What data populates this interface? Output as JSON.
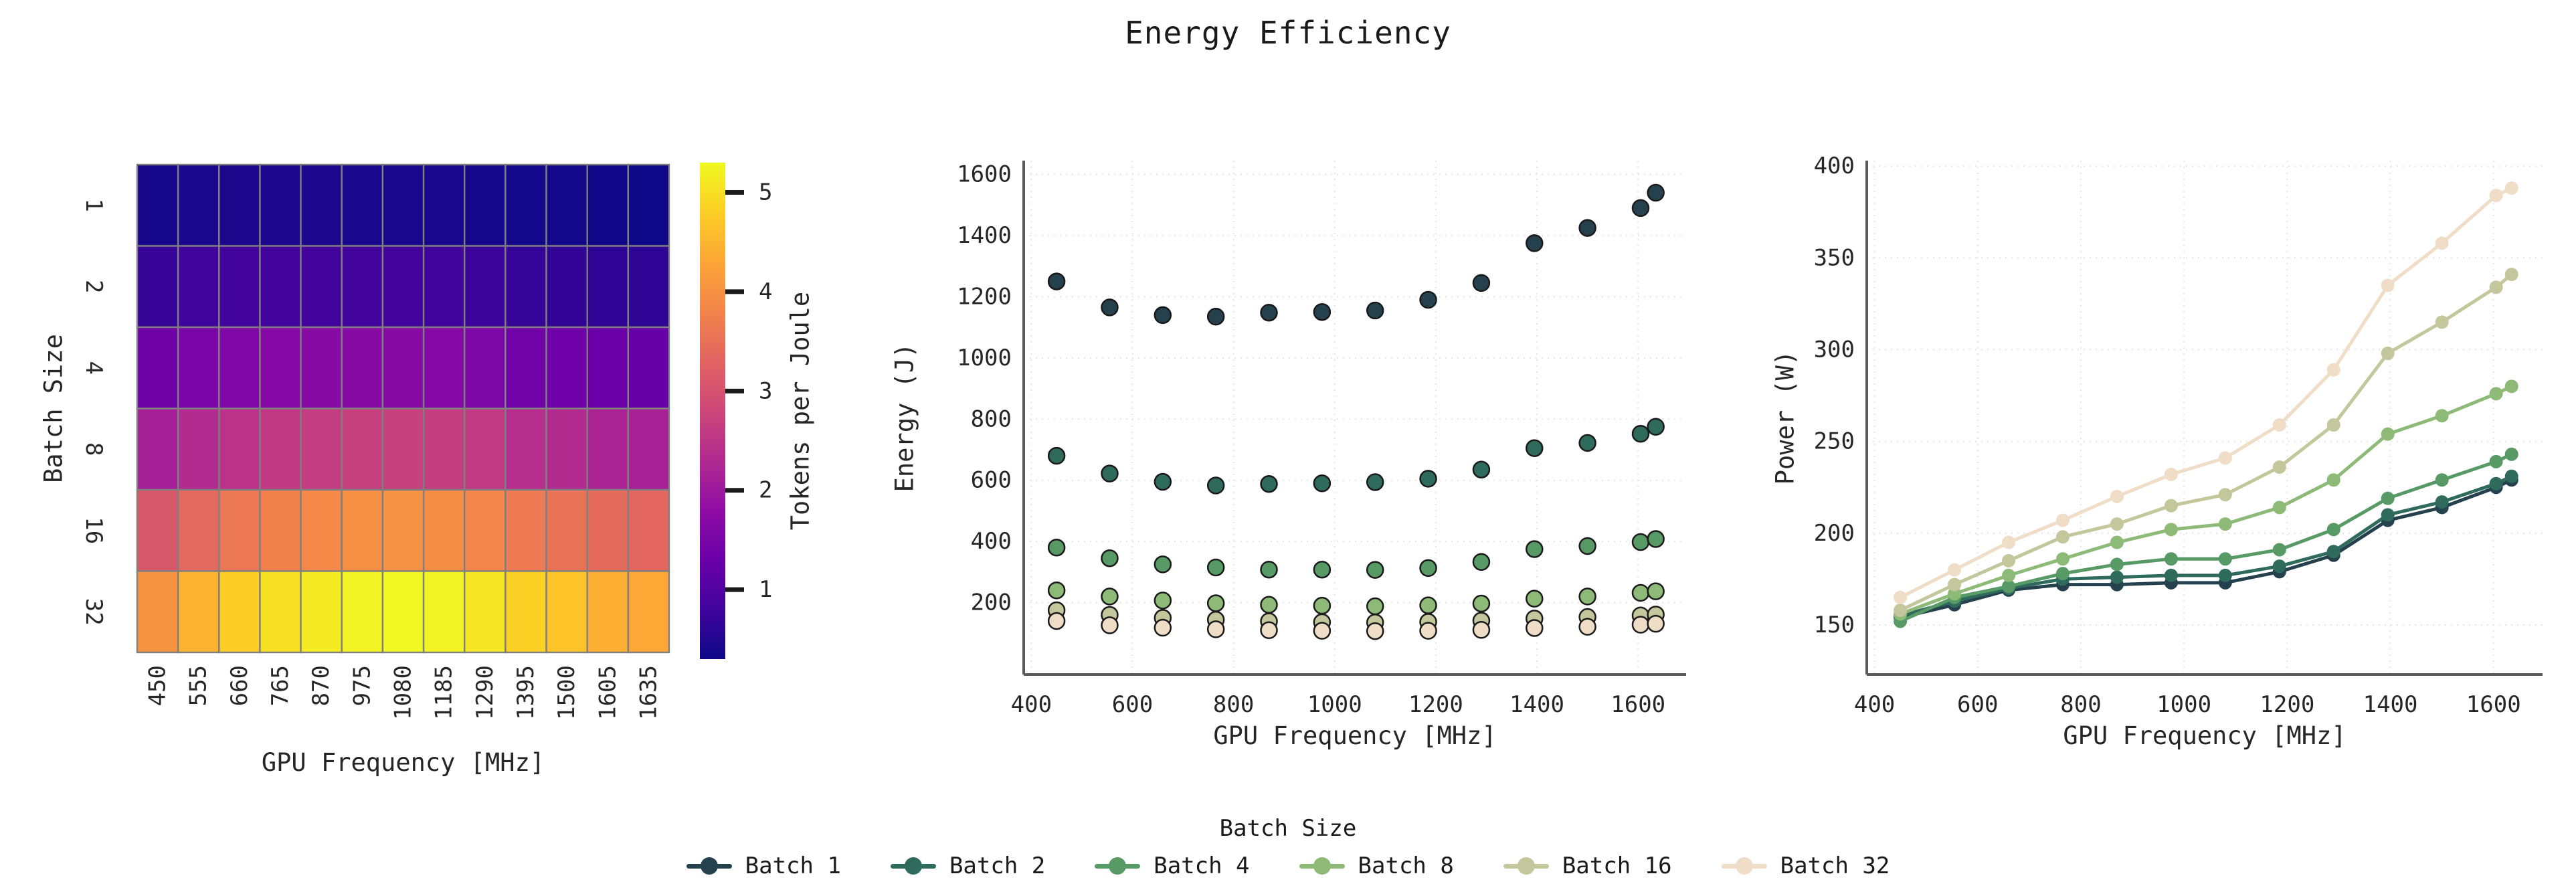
{
  "title": "Energy Efficiency",
  "colors": {
    "background": "#ffffff",
    "text": "#262626",
    "title_text": "#1a1a1a",
    "spine": "#5a5a5a",
    "grid": "#e4e4e4",
    "cell_border": "#7f7f7f",
    "marker_edge": "#1a1a1a",
    "series": {
      "batch_1": "#25414e",
      "batch_2": "#2f6b5c",
      "batch_4": "#579a66",
      "batch_8": "#8eba77",
      "batch_16": "#c4c69c",
      "batch_32": "#f0ddc8"
    },
    "plasma_stops": [
      "#0d0887",
      "#41049d",
      "#6a00a8",
      "#8f0da4",
      "#b12a90",
      "#cc4778",
      "#e16462",
      "#f2844b",
      "#fca636",
      "#fcce25",
      "#f0f921"
    ]
  },
  "legend": {
    "title": "Batch Size",
    "entries": [
      {
        "label": "Batch 1",
        "color": "#25414e"
      },
      {
        "label": "Batch 2",
        "color": "#2f6b5c"
      },
      {
        "label": "Batch 4",
        "color": "#579a66"
      },
      {
        "label": "Batch 8",
        "color": "#8eba77"
      },
      {
        "label": "Batch 16",
        "color": "#c4c69c"
      },
      {
        "label": "Batch 32",
        "color": "#f0ddc8"
      }
    ]
  },
  "chart_data": [
    {
      "type": "heatmap",
      "xlabel": "GPU Frequency [MHz]",
      "ylabel": "Batch Size",
      "x_ticks": [
        "450",
        "555",
        "660",
        "765",
        "870",
        "975",
        "1080",
        "1185",
        "1290",
        "1395",
        "1500",
        "1605",
        "1635"
      ],
      "y_ticks": [
        "1",
        "2",
        "4",
        "8",
        "16",
        "32"
      ],
      "vmin": 0.3,
      "vmax": 5.3,
      "values": [
        [
          0.4,
          0.43,
          0.44,
          0.44,
          0.44,
          0.43,
          0.43,
          0.42,
          0.4,
          0.36,
          0.35,
          0.34,
          0.32
        ],
        [
          0.71,
          0.77,
          0.81,
          0.82,
          0.82,
          0.81,
          0.81,
          0.79,
          0.76,
          0.68,
          0.66,
          0.64,
          0.62
        ],
        [
          1.37,
          1.51,
          1.6,
          1.65,
          1.69,
          1.69,
          1.69,
          1.66,
          1.56,
          1.39,
          1.35,
          1.31,
          1.27
        ],
        [
          2.13,
          2.32,
          2.46,
          2.58,
          2.64,
          2.68,
          2.71,
          2.67,
          2.59,
          2.39,
          2.32,
          2.2,
          2.15
        ],
        [
          3.09,
          3.38,
          3.6,
          3.75,
          3.88,
          3.97,
          4.0,
          3.94,
          3.83,
          3.65,
          3.53,
          3.42,
          3.35
        ],
        [
          4.04,
          4.48,
          4.79,
          5.0,
          5.14,
          5.23,
          5.28,
          5.23,
          5.09,
          4.83,
          4.67,
          4.41,
          4.31
        ]
      ],
      "colorbar": {
        "label": "Tokens per Joule",
        "ticks": [
          1,
          2,
          3,
          4,
          5
        ]
      }
    },
    {
      "type": "scatter",
      "xlabel": "GPU Frequency [MHz]",
      "ylabel": "Energy (J)",
      "x": [
        450,
        555,
        660,
        765,
        870,
        975,
        1080,
        1185,
        1290,
        1395,
        1500,
        1605,
        1635
      ],
      "xticks": [
        400,
        600,
        800,
        1000,
        1200,
        1400,
        1600
      ],
      "yticks": [
        200,
        400,
        600,
        800,
        1000,
        1200,
        1400,
        1600
      ],
      "xlim": [
        385,
        1695
      ],
      "ylim": [
        -35,
        1645
      ],
      "series": [
        {
          "name": "Batch 1",
          "values": [
            1250,
            1165,
            1140,
            1135,
            1148,
            1150,
            1155,
            1190,
            1245,
            1375,
            1425,
            1490,
            1540
          ]
        },
        {
          "name": "Batch 2",
          "values": [
            680,
            622,
            595,
            583,
            588,
            590,
            594,
            605,
            635,
            705,
            722,
            752,
            775
          ]
        },
        {
          "name": "Batch 4",
          "values": [
            380,
            345,
            325,
            315,
            308,
            308,
            307,
            313,
            333,
            375,
            385,
            398,
            408
          ]
        },
        {
          "name": "Batch 8",
          "values": [
            240,
            220,
            207,
            198,
            193,
            190,
            188,
            191,
            197,
            213,
            220,
            232,
            237
          ]
        },
        {
          "name": "Batch 16",
          "values": [
            175,
            160,
            150,
            144,
            139,
            136,
            135,
            137,
            141,
            148,
            153,
            158,
            161
          ]
        },
        {
          "name": "Batch 32",
          "values": [
            140,
            126,
            118,
            113,
            110,
            108,
            107,
            108,
            111,
            117,
            121,
            128,
            131
          ]
        }
      ]
    },
    {
      "type": "line",
      "xlabel": "GPU Frequency [MHz]",
      "ylabel": "Power (W)",
      "x": [
        450,
        555,
        660,
        765,
        870,
        975,
        1080,
        1185,
        1290,
        1395,
        1500,
        1605,
        1635
      ],
      "xticks": [
        400,
        600,
        800,
        1000,
        1200,
        1400,
        1600
      ],
      "yticks": [
        150,
        200,
        250,
        300,
        350,
        400
      ],
      "xlim": [
        385,
        1695
      ],
      "ylim": [
        123,
        403
      ],
      "series": [
        {
          "name": "Batch 1",
          "values": [
            154,
            161,
            169,
            172,
            172,
            173,
            173,
            179,
            188,
            207,
            214,
            225,
            229
          ]
        },
        {
          "name": "Batch 2",
          "values": [
            155,
            163,
            170,
            175,
            176,
            177,
            177,
            182,
            190,
            210,
            217,
            227,
            231
          ]
        },
        {
          "name": "Batch 4",
          "values": [
            152,
            165,
            171,
            178,
            183,
            186,
            186,
            191,
            202,
            219,
            229,
            239,
            243
          ]
        },
        {
          "name": "Batch 8",
          "values": [
            156,
            167,
            177,
            186,
            195,
            202,
            205,
            214,
            229,
            254,
            264,
            276,
            280
          ]
        },
        {
          "name": "Batch 16",
          "values": [
            158,
            172,
            185,
            198,
            205,
            215,
            221,
            236,
            259,
            298,
            315,
            334,
            341
          ]
        },
        {
          "name": "Batch 32",
          "values": [
            165,
            180,
            195,
            207,
            220,
            232,
            241,
            259,
            289,
            335,
            358,
            384,
            388
          ]
        }
      ]
    }
  ]
}
